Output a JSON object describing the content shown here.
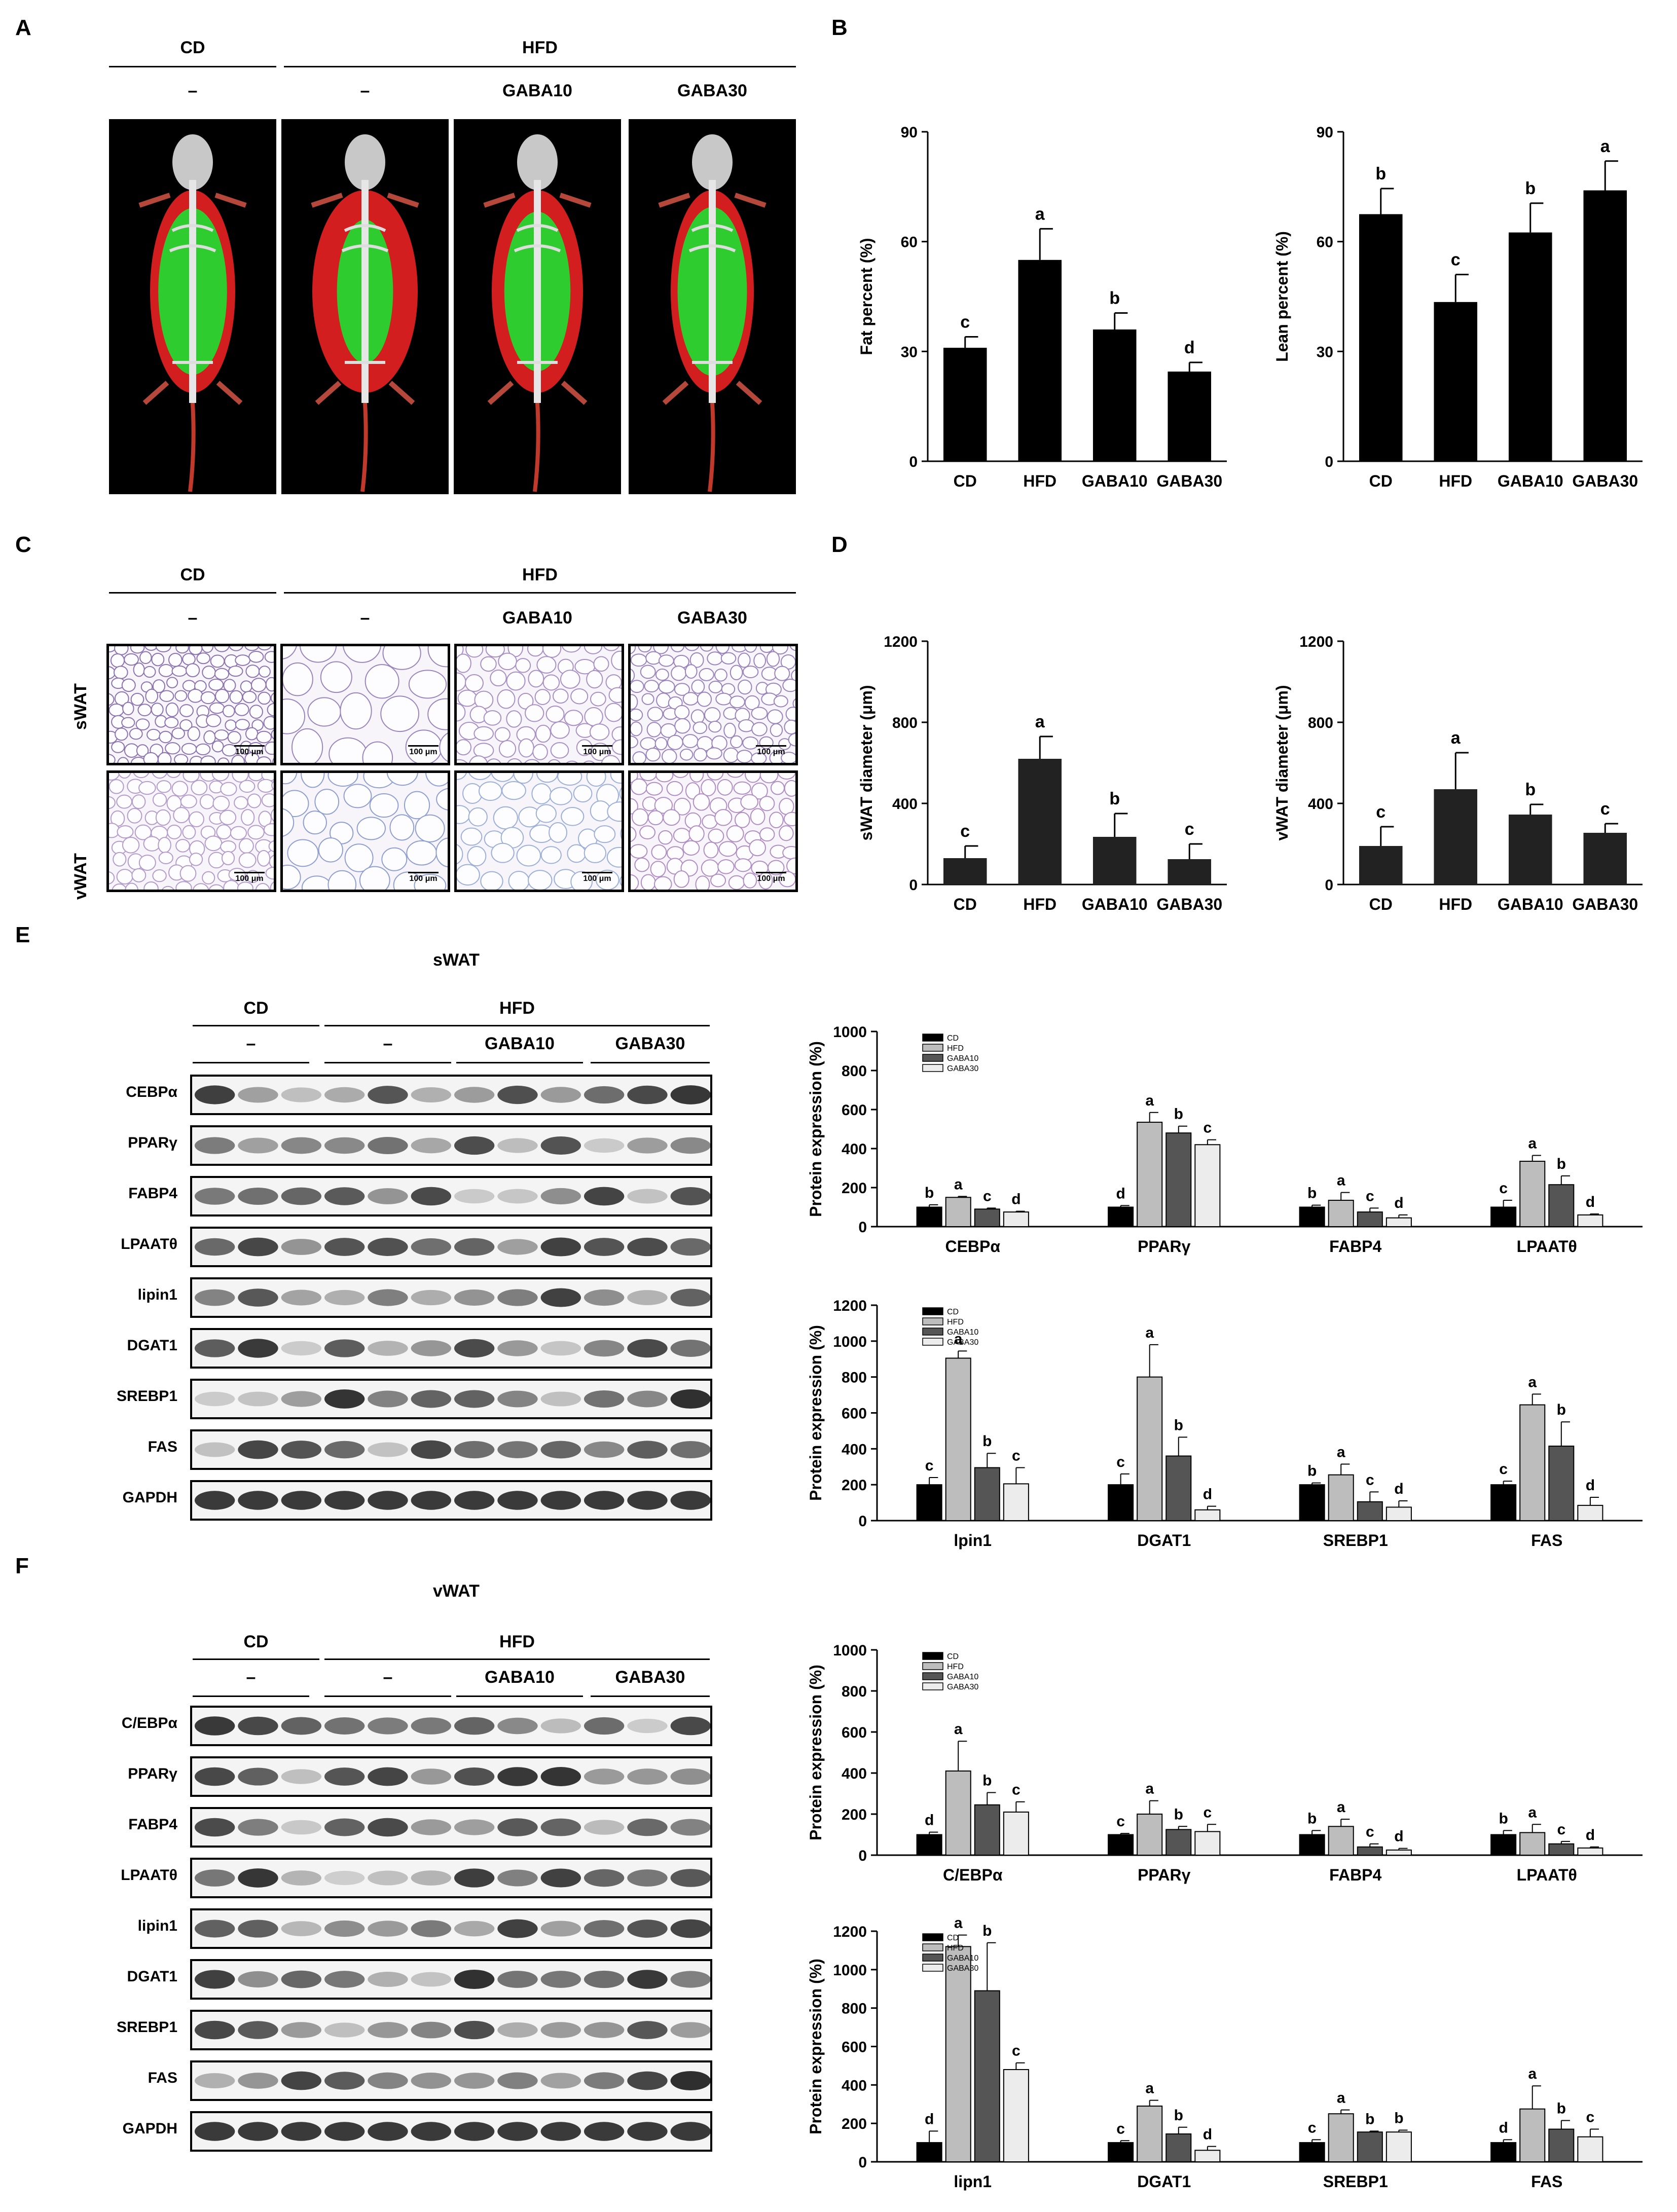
{
  "panels": {
    "A": "A",
    "B": "B",
    "C": "C",
    "D": "D",
    "E": "E",
    "F": "F"
  },
  "groups": {
    "cd": "CD",
    "hfd": "HFD",
    "dash": "–",
    "gaba10": "GABA10",
    "gaba30": "GABA30"
  },
  "tissue": {
    "swat": "sWAT",
    "vwat": "vWAT"
  },
  "scale_bar": "100 μm",
  "blots_e": {
    "title": "sWAT",
    "rows": [
      "CEBPα",
      "PPARγ",
      "FABP4",
      "LPAATθ",
      "lipin1",
      "DGAT1",
      "SREBP1",
      "FAS",
      "GAPDH"
    ]
  },
  "blots_f": {
    "title": "vWAT",
    "rows": [
      "C/EBPα",
      "PPARγ",
      "FABP4",
      "LPAATθ",
      "lipin1",
      "DGAT1",
      "SREBP1",
      "FAS",
      "GAPDH"
    ]
  },
  "chart_data": [
    {
      "id": "B1",
      "type": "bar",
      "categories": [
        "CD",
        "HFD",
        "GABA10",
        "GABA30"
      ],
      "values": [
        31,
        55,
        36,
        24.5
      ],
      "errors": [
        3,
        8.5,
        4.5,
        2.5
      ],
      "letters": [
        "c",
        "a",
        "b",
        "d"
      ],
      "ylabel": "Fat percent (%)",
      "ylim": [
        0,
        90
      ],
      "yticks": [
        0,
        30,
        60,
        90
      ],
      "color": "#000000"
    },
    {
      "id": "B2",
      "type": "bar",
      "categories": [
        "CD",
        "HFD",
        "GABA10",
        "GABA30"
      ],
      "values": [
        67.5,
        43.5,
        62.5,
        74
      ],
      "errors": [
        7,
        7.5,
        8,
        8
      ],
      "letters": [
        "b",
        "c",
        "b",
        "a"
      ],
      "ylabel": "Lean percent (%)",
      "ylim": [
        0,
        90
      ],
      "yticks": [
        0,
        30,
        60,
        90
      ],
      "color": "#000000"
    },
    {
      "id": "D1",
      "type": "bar",
      "categories": [
        "CD",
        "HFD",
        "GABA10",
        "GABA30"
      ],
      "values": [
        130,
        620,
        235,
        125
      ],
      "errors": [
        60,
        110,
        115,
        75
      ],
      "letters": [
        "c",
        "a",
        "b",
        "c"
      ],
      "ylabel": "sWAT diameter (μm)",
      "ylim": [
        0,
        1200
      ],
      "yticks": [
        0,
        400,
        800,
        1200
      ],
      "color": "#222222"
    },
    {
      "id": "D2",
      "type": "bar",
      "categories": [
        "CD",
        "HFD",
        "GABA10",
        "GABA30"
      ],
      "values": [
        190,
        470,
        345,
        255
      ],
      "errors": [
        95,
        180,
        50,
        45
      ],
      "letters": [
        "c",
        "a",
        "b",
        "c"
      ],
      "ylabel": "vWAT diameter (μm)",
      "ylim": [
        0,
        1200
      ],
      "yticks": [
        0,
        400,
        800,
        1200
      ],
      "color": "#222222"
    },
    {
      "id": "E1",
      "type": "bar",
      "categories": [
        "CEBPα",
        "PPARγ",
        "FABP4",
        "LPAATθ"
      ],
      "legend": [
        "CD",
        "HFD",
        "GABA10",
        "GABA30"
      ],
      "series": [
        {
          "name": "CD",
          "values": [
            100,
            100,
            100,
            100
          ],
          "errors": [
            12,
            8,
            10,
            35
          ],
          "letters": [
            "b",
            "d",
            "b",
            "c"
          ]
        },
        {
          "name": "HFD",
          "values": [
            150,
            535,
            135,
            335
          ],
          "errors": [
            5,
            50,
            40,
            30
          ],
          "letters": [
            "a",
            "a",
            "a",
            "a"
          ]
        },
        {
          "name": "GABA10",
          "values": [
            90,
            480,
            75,
            215
          ],
          "errors": [
            5,
            35,
            20,
            45
          ],
          "letters": [
            "c",
            "b",
            "c",
            "b"
          ]
        },
        {
          "name": "GABA30",
          "values": [
            75,
            420,
            45,
            60
          ],
          "errors": [
            4,
            25,
            15,
            5
          ],
          "letters": [
            "d",
            "c",
            "d",
            "d"
          ]
        }
      ],
      "ylabel": "Protein expression (%)",
      "ylim": [
        0,
        1000
      ],
      "yticks": [
        0,
        200,
        400,
        600,
        800,
        1000
      ]
    },
    {
      "id": "E2",
      "type": "bar",
      "categories": [
        "lpin1",
        "DGAT1",
        "SREBP1",
        "FAS"
      ],
      "legend": [
        "CD",
        "HFD",
        "GABA10",
        "GABA30"
      ],
      "series": [
        {
          "name": "CD",
          "values": [
            200,
            200,
            200,
            200
          ],
          "errors": [
            40,
            60,
            10,
            20
          ],
          "letters": [
            "c",
            "c",
            "b",
            "c"
          ]
        },
        {
          "name": "HFD",
          "values": [
            905,
            800,
            255,
            645
          ],
          "errors": [
            40,
            180,
            60,
            60
          ],
          "letters": [
            "a",
            "a",
            "a",
            "a"
          ]
        },
        {
          "name": "GABA10",
          "values": [
            295,
            360,
            105,
            415
          ],
          "errors": [
            80,
            105,
            55,
            135
          ],
          "letters": [
            "b",
            "b",
            "c",
            "b"
          ]
        },
        {
          "name": "GABA30",
          "values": [
            205,
            60,
            75,
            85
          ],
          "errors": [
            90,
            20,
            35,
            45
          ],
          "letters": [
            "c",
            "d",
            "d",
            "d"
          ]
        }
      ],
      "ylabel": "Protein expression (%)",
      "ylim": [
        0,
        1200
      ],
      "yticks": [
        0,
        200,
        400,
        600,
        800,
        1000,
        1200
      ]
    },
    {
      "id": "F1",
      "type": "bar",
      "categories": [
        "C/EBPα",
        "PPARγ",
        "FABP4",
        "LPAATθ"
      ],
      "legend": [
        "CD",
        "HFD",
        "GABA10",
        "GABA30"
      ],
      "series": [
        {
          "name": "CD",
          "values": [
            100,
            100,
            100,
            100
          ],
          "errors": [
            12,
            6,
            20,
            20
          ],
          "letters": [
            "d",
            "c",
            "b",
            "b"
          ]
        },
        {
          "name": "HFD",
          "values": [
            410,
            200,
            140,
            110
          ],
          "errors": [
            145,
            65,
            35,
            40
          ],
          "letters": [
            "a",
            "a",
            "a",
            "a"
          ]
        },
        {
          "name": "GABA10",
          "values": [
            245,
            125,
            40,
            55
          ],
          "errors": [
            60,
            15,
            15,
            12
          ],
          "letters": [
            "b",
            "b",
            "c",
            "c"
          ]
        },
        {
          "name": "GABA30",
          "values": [
            210,
            115,
            25,
            35
          ],
          "errors": [
            50,
            35,
            8,
            5
          ],
          "letters": [
            "c",
            "c",
            "d",
            "d"
          ]
        }
      ],
      "ylabel": "Protein expression (%)",
      "ylim": [
        0,
        1000
      ],
      "yticks": [
        0,
        200,
        400,
        600,
        800,
        1000
      ]
    },
    {
      "id": "F2",
      "type": "bar",
      "categories": [
        "lipn1",
        "DGAT1",
        "SREBP1",
        "FAS"
      ],
      "legend": [
        "CD",
        "HFD",
        "GABA10",
        "GABA30"
      ],
      "series": [
        {
          "name": "CD",
          "values": [
            100,
            100,
            100,
            100
          ],
          "errors": [
            60,
            10,
            15,
            15
          ],
          "letters": [
            "d",
            "c",
            "c",
            "d"
          ]
        },
        {
          "name": "HFD",
          "values": [
            1120,
            290,
            250,
            275
          ],
          "errors": [
            60,
            30,
            20,
            120
          ],
          "letters": [
            "a",
            "a",
            "a",
            "a"
          ]
        },
        {
          "name": "GABA10",
          "values": [
            890,
            145,
            155,
            170
          ],
          "errors": [
            250,
            35,
            5,
            45
          ],
          "letters": [
            "b",
            "b",
            "b",
            "b"
          ]
        },
        {
          "name": "GABA30",
          "values": [
            480,
            60,
            155,
            130
          ],
          "errors": [
            35,
            20,
            10,
            40
          ],
          "letters": [
            "c",
            "d",
            "b",
            "c"
          ]
        }
      ],
      "ylabel": "Protein expression (%)",
      "ylim": [
        0,
        1200
      ],
      "yticks": [
        0,
        200,
        400,
        600,
        800,
        1000,
        1200
      ]
    }
  ]
}
